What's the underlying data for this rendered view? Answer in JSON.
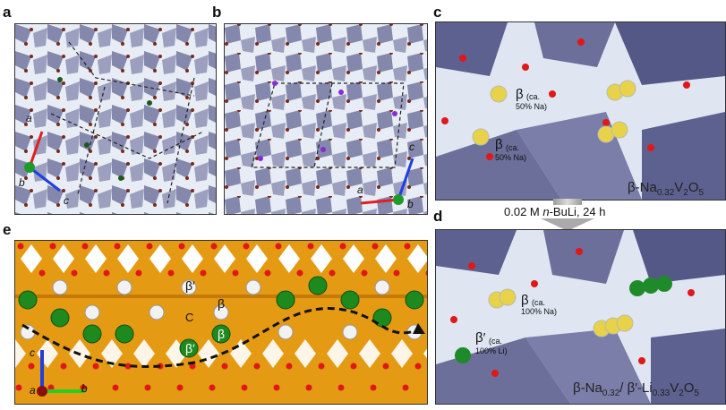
{
  "panels": {
    "a": {
      "label": "a",
      "axes": {
        "a": "a",
        "b": "b",
        "c": "c"
      }
    },
    "b": {
      "label": "b",
      "axes": {
        "a": "a",
        "b": "b",
        "c": "c"
      }
    },
    "c": {
      "label": "c",
      "site1": "β",
      "site1_note_1": "(ca.",
      "site1_note_2": "50% Na)",
      "site2": "β",
      "site2_note_1": "(ca.",
      "site2_note_2": "50% Na)",
      "formula_prefix": "β-Na",
      "formula_sub1": "0.32",
      "formula_mid": "V",
      "formula_sub2": "2",
      "formula_o": "O",
      "formula_sub3": "5"
    },
    "d": {
      "label": "d",
      "site1": "β",
      "site1_note_1": "(ca.",
      "site1_note_2": "100% Na)",
      "site2": "β′",
      "site2_note_1": "(ca.",
      "site2_note_2": "100% Li)",
      "formula_prefix": "β-Na",
      "formula_sub1": "0.32",
      "formula_mid": "/ β′-Li",
      "formula_sub2": "0.33",
      "formula_v": "V",
      "formula_sub3": "2",
      "formula_o": "O",
      "formula_sub4": "5"
    },
    "e": {
      "label": "e",
      "site_labels": [
        "β′",
        "β",
        "C",
        "β",
        "β′"
      ],
      "axes": {
        "a": "a",
        "b": "b",
        "c": "c"
      }
    }
  },
  "arrow": {
    "label_pre": "0.02 M ",
    "label_italic": "n",
    "label_post": "-BuLi, 24 h"
  },
  "colors": {
    "polyhedra": "#6b6f9a",
    "oxygen": "#e01818",
    "sodium": "#e8d24a",
    "lithium": "#1f8a2a",
    "framework_e": "#e59a14",
    "vacancy": "#ffffff"
  }
}
